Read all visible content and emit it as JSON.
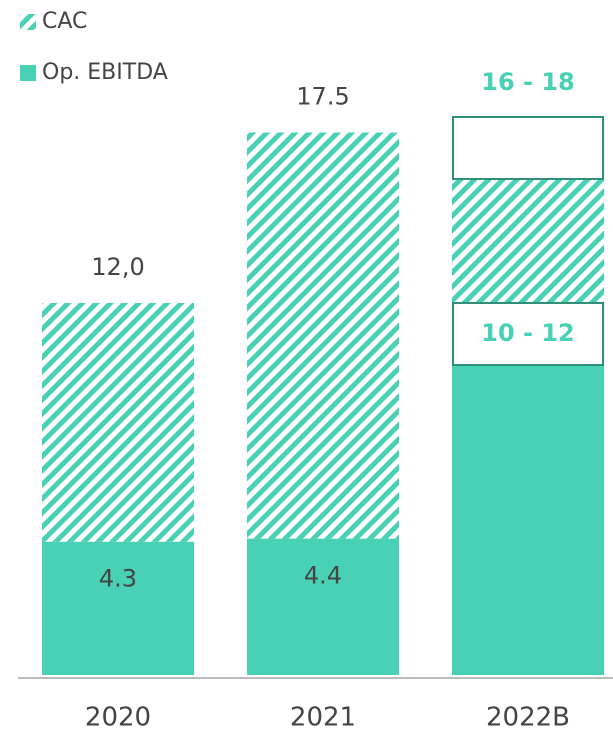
{
  "chart_data": {
    "type": "bar",
    "stacked": true,
    "categories": [
      "2020",
      "2021",
      "2022B"
    ],
    "series": [
      {
        "name": "Op. EBITDA",
        "color": "#48d1b4",
        "pattern": "solid",
        "values": [
          4.3,
          4.4,
          10
        ],
        "value_labels": [
          "4.3",
          "4.4",
          null
        ]
      },
      {
        "name": "CAC",
        "color": "#48d1b4",
        "pattern": "hatch",
        "values": [
          7.7,
          13.1,
          4
        ]
      }
    ],
    "ranges": [
      {
        "category": 2,
        "low": 10,
        "high": 12,
        "label": "10 - 12"
      },
      {
        "category": 2,
        "low": 16,
        "high": 18,
        "label": "16 - 18"
      }
    ],
    "totals": [
      12,
      17.5,
      null
    ],
    "total_labels": [
      "12,0",
      "17.5",
      null
    ],
    "ylim": [
      0,
      18
    ]
  }
}
